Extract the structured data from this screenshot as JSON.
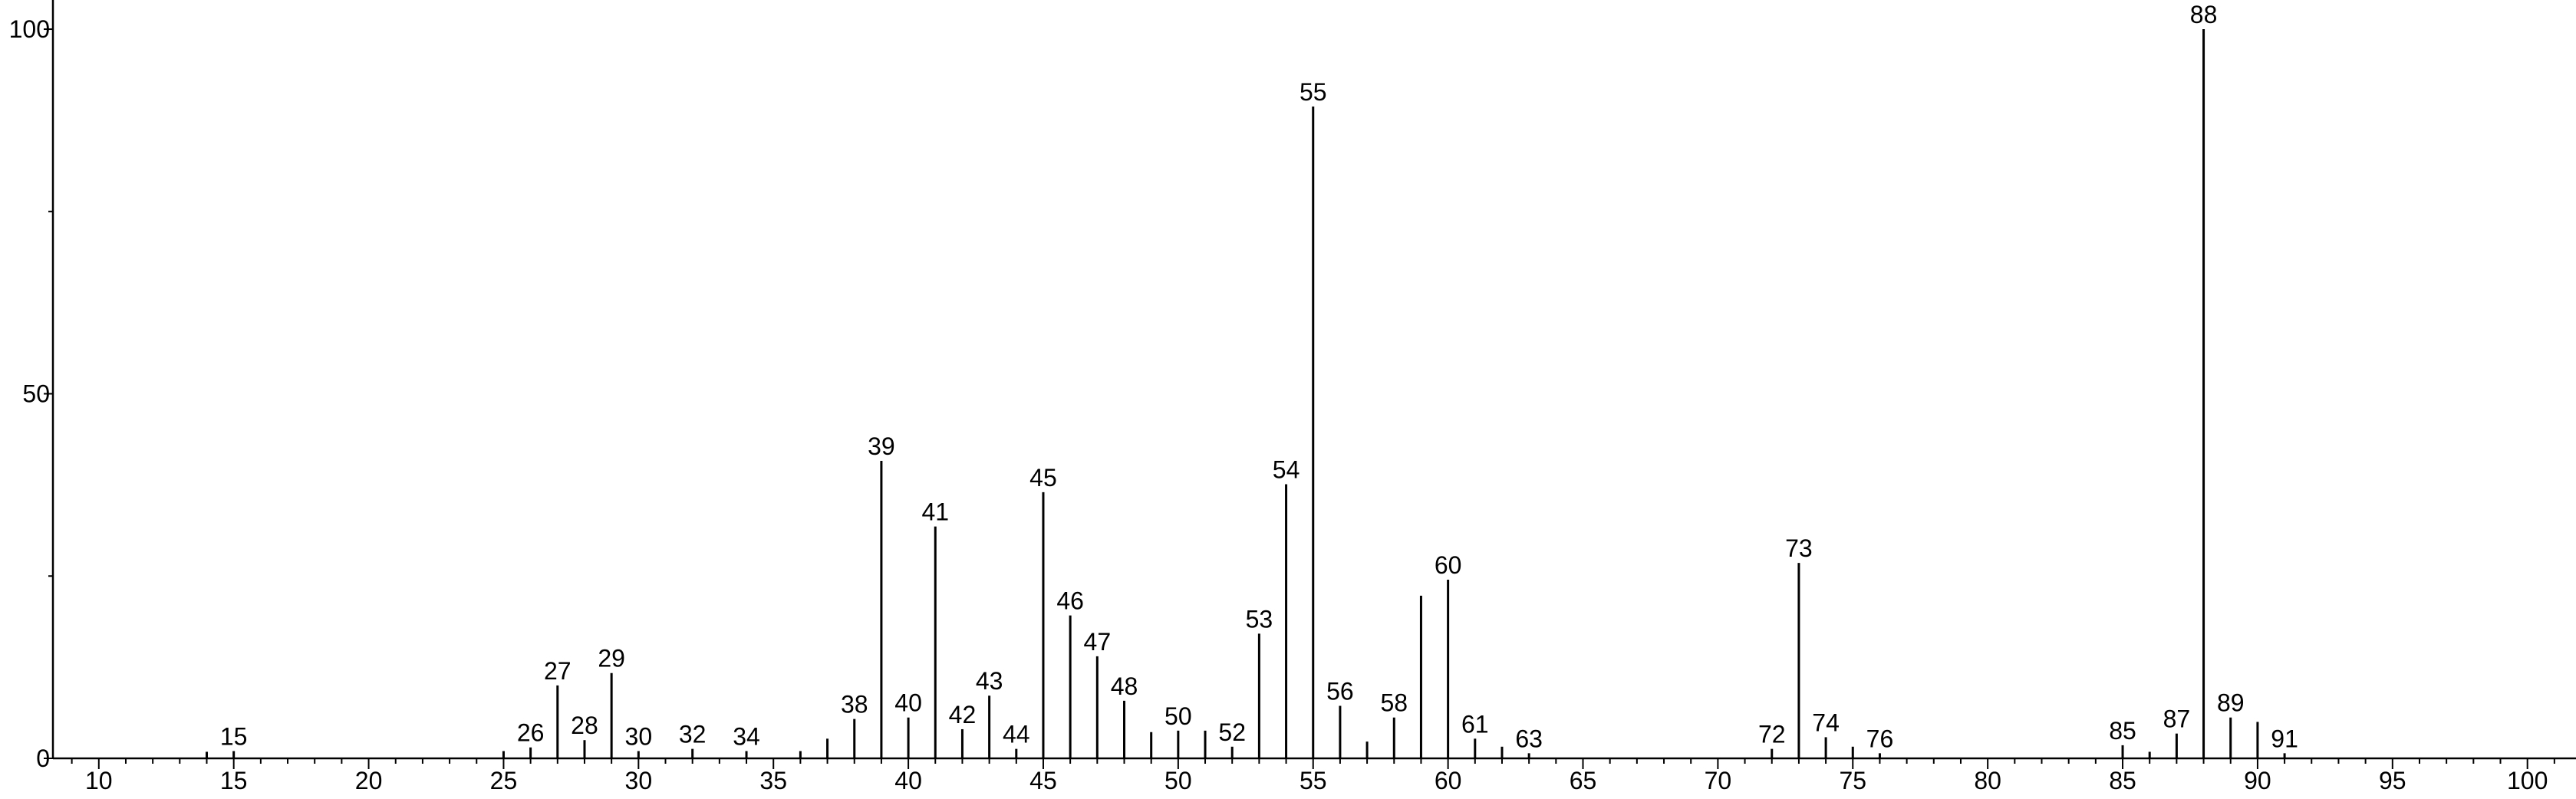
{
  "chart_data": {
    "type": "stem",
    "x": [
      14,
      15,
      25,
      26,
      27,
      28,
      29,
      30,
      32,
      34,
      36,
      37,
      38,
      39,
      40,
      41,
      42,
      43,
      44,
      45,
      46,
      47,
      48,
      49,
      50,
      51,
      52,
      53,
      54,
      55,
      56,
      57,
      58,
      59,
      60,
      61,
      62,
      63,
      72,
      73,
      74,
      75,
      76,
      85,
      86,
      87,
      88,
      89,
      90,
      91
    ],
    "values": [
      0.9,
      1,
      1,
      1.5,
      10,
      2.5,
      11.7,
      1,
      1.3,
      1,
      1,
      2.7,
      5.4,
      40.8,
      5.6,
      31.8,
      4,
      8.6,
      1.3,
      36.5,
      19.6,
      14,
      7.9,
      3.6,
      3.8,
      3.8,
      1.6,
      17.1,
      37.6,
      89.4,
      7.2,
      2.3,
      5.6,
      22.3,
      24.5,
      2.7,
      1.6,
      0.7,
      1.3,
      26.8,
      2.9,
      1.6,
      0.7,
      1.8,
      0.9,
      3.4,
      100,
      5.6,
      5,
      0.7
    ],
    "labeled": [
      false,
      true,
      false,
      true,
      true,
      true,
      true,
      true,
      true,
      true,
      false,
      false,
      true,
      true,
      true,
      true,
      true,
      true,
      true,
      true,
      true,
      true,
      true,
      false,
      true,
      false,
      true,
      true,
      true,
      true,
      true,
      false,
      true,
      false,
      true,
      true,
      false,
      true,
      true,
      true,
      true,
      false,
      true,
      true,
      false,
      true,
      true,
      true,
      false,
      true
    ],
    "color": "#000000",
    "xlim": [
      8.3,
      101.8
    ],
    "ylim": [
      0,
      104
    ],
    "xticks": [
      10,
      15,
      20,
      25,
      30,
      35,
      40,
      45,
      50,
      55,
      60,
      65,
      70,
      75,
      80,
      85,
      90,
      95,
      100
    ],
    "xminorticks": [
      9,
      11,
      12,
      13,
      14,
      16,
      17,
      18,
      19,
      21,
      22,
      23,
      24,
      26,
      27,
      28,
      29,
      31,
      32,
      33,
      34,
      36,
      37,
      38,
      39,
      41,
      42,
      43,
      44,
      46,
      47,
      48,
      49,
      51,
      52,
      53,
      54,
      56,
      57,
      58,
      59,
      61,
      62,
      63,
      64,
      66,
      67,
      68,
      69,
      71,
      72,
      73,
      74,
      76,
      77,
      78,
      79,
      81,
      82,
      83,
      84,
      86,
      87,
      88,
      89,
      91,
      92,
      93,
      94,
      96,
      97,
      98,
      99,
      101
    ],
    "yticks": [
      0,
      50,
      100
    ],
    "yminorticks": [
      25,
      75
    ]
  }
}
